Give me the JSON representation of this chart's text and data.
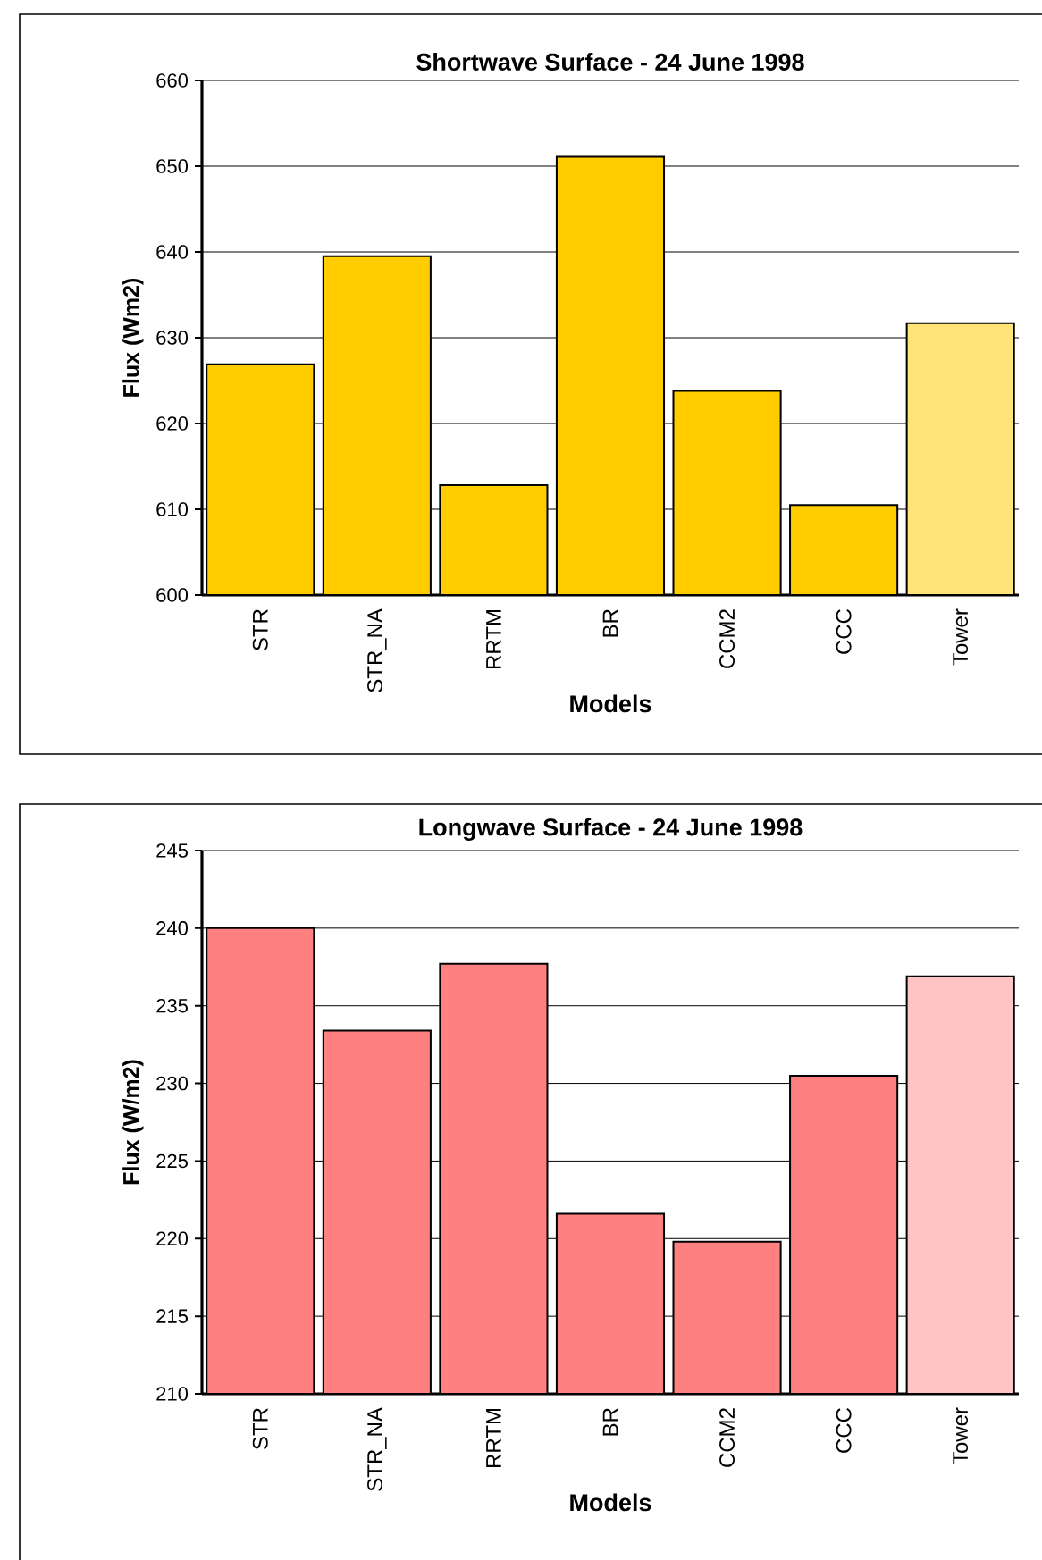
{
  "chart_data": [
    {
      "type": "bar",
      "title": "Shortwave Surface - 24 June 1998",
      "xlabel": "Models",
      "ylabel": "Flux (Wm2)",
      "categories": [
        "STR",
        "STR_NA",
        "RRTM",
        "BR",
        "CCM2",
        "CCC",
        "Tower"
      ],
      "values": [
        626.9,
        639.5,
        612.8,
        651.1,
        623.8,
        610.5,
        631.7
      ],
      "colors": [
        "#ffcc00",
        "#ffcc00",
        "#ffcc00",
        "#ffcc00",
        "#ffcc00",
        "#ffcc00",
        "#ffe47a"
      ],
      "ylim": [
        600,
        660
      ],
      "yticks": [
        600,
        610,
        620,
        630,
        640,
        650,
        660
      ],
      "grid": "y"
    },
    {
      "type": "bar",
      "title": "Longwave Surface - 24 June 1998",
      "xlabel": "Models",
      "ylabel": "Flux (W/m2)",
      "categories": [
        "STR",
        "STR_NA",
        "RRTM",
        "BR",
        "CCM2",
        "CCC",
        "Tower"
      ],
      "values": [
        240.0,
        233.4,
        237.7,
        221.6,
        219.8,
        230.5,
        236.9
      ],
      "colors": [
        "#ff8080",
        "#ff8080",
        "#ff8080",
        "#ff8080",
        "#ff8080",
        "#ff8080",
        "#ffc4c4"
      ],
      "ylim": [
        210,
        245
      ],
      "yticks": [
        210,
        215,
        220,
        225,
        230,
        235,
        240,
        245
      ],
      "grid": "y"
    }
  ]
}
